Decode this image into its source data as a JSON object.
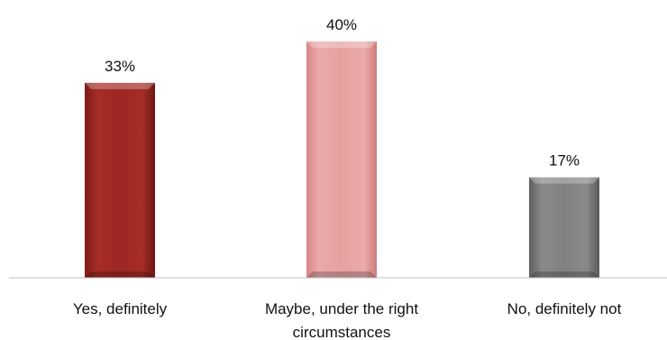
{
  "chart_data": {
    "type": "bar",
    "categories": [
      [
        "Yes, definitely"
      ],
      [
        "Maybe, under the right",
        "circumstances"
      ],
      [
        "No, definitely not"
      ]
    ],
    "values": [
      33,
      40,
      17
    ],
    "data_labels": [
      "33%",
      "40%",
      "17%"
    ],
    "value_unit": "%",
    "ylim": [
      0,
      40
    ],
    "grid": false,
    "legend": "none",
    "bar_colors": [
      "#9b2420",
      "#e49a9a",
      "#7c7c7c"
    ],
    "axis_color": "#bfbfbf"
  }
}
